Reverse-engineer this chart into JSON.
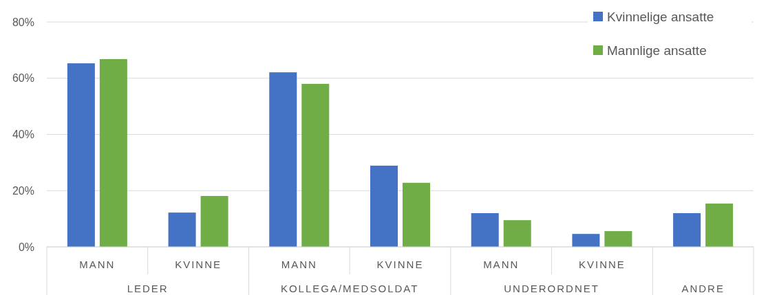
{
  "chart_data": {
    "type": "bar",
    "categories": [
      "MANN",
      "KVINNE",
      "MANN",
      "KVINNE",
      "MANN",
      "KVINNE",
      null
    ],
    "series": [
      {
        "name": "Kvinnelige ansatte",
        "color": "#4472c4",
        "values": [
          65.3,
          12.2,
          62.1,
          28.9,
          12.0,
          4.6,
          12.0
        ]
      },
      {
        "name": "Mannlige ansatte",
        "color": "#70ad47",
        "values": [
          66.8,
          18.1,
          58.0,
          22.8,
          9.5,
          5.6,
          15.4
        ]
      }
    ],
    "ylim": [
      0,
      80
    ],
    "yticks": [
      {
        "value": 0,
        "label": "0%"
      },
      {
        "value": 20,
        "label": "20%"
      },
      {
        "value": 40,
        "label": "40%"
      },
      {
        "value": 60,
        "label": "60%"
      },
      {
        "value": 80,
        "label": "80%"
      }
    ],
    "grid": "y",
    "legend": "top right",
    "annotations": [
      "LEDER",
      "KOLLEGA/MEDSOLDAT",
      "UNDERORDNET",
      "ANDRE"
    ]
  }
}
